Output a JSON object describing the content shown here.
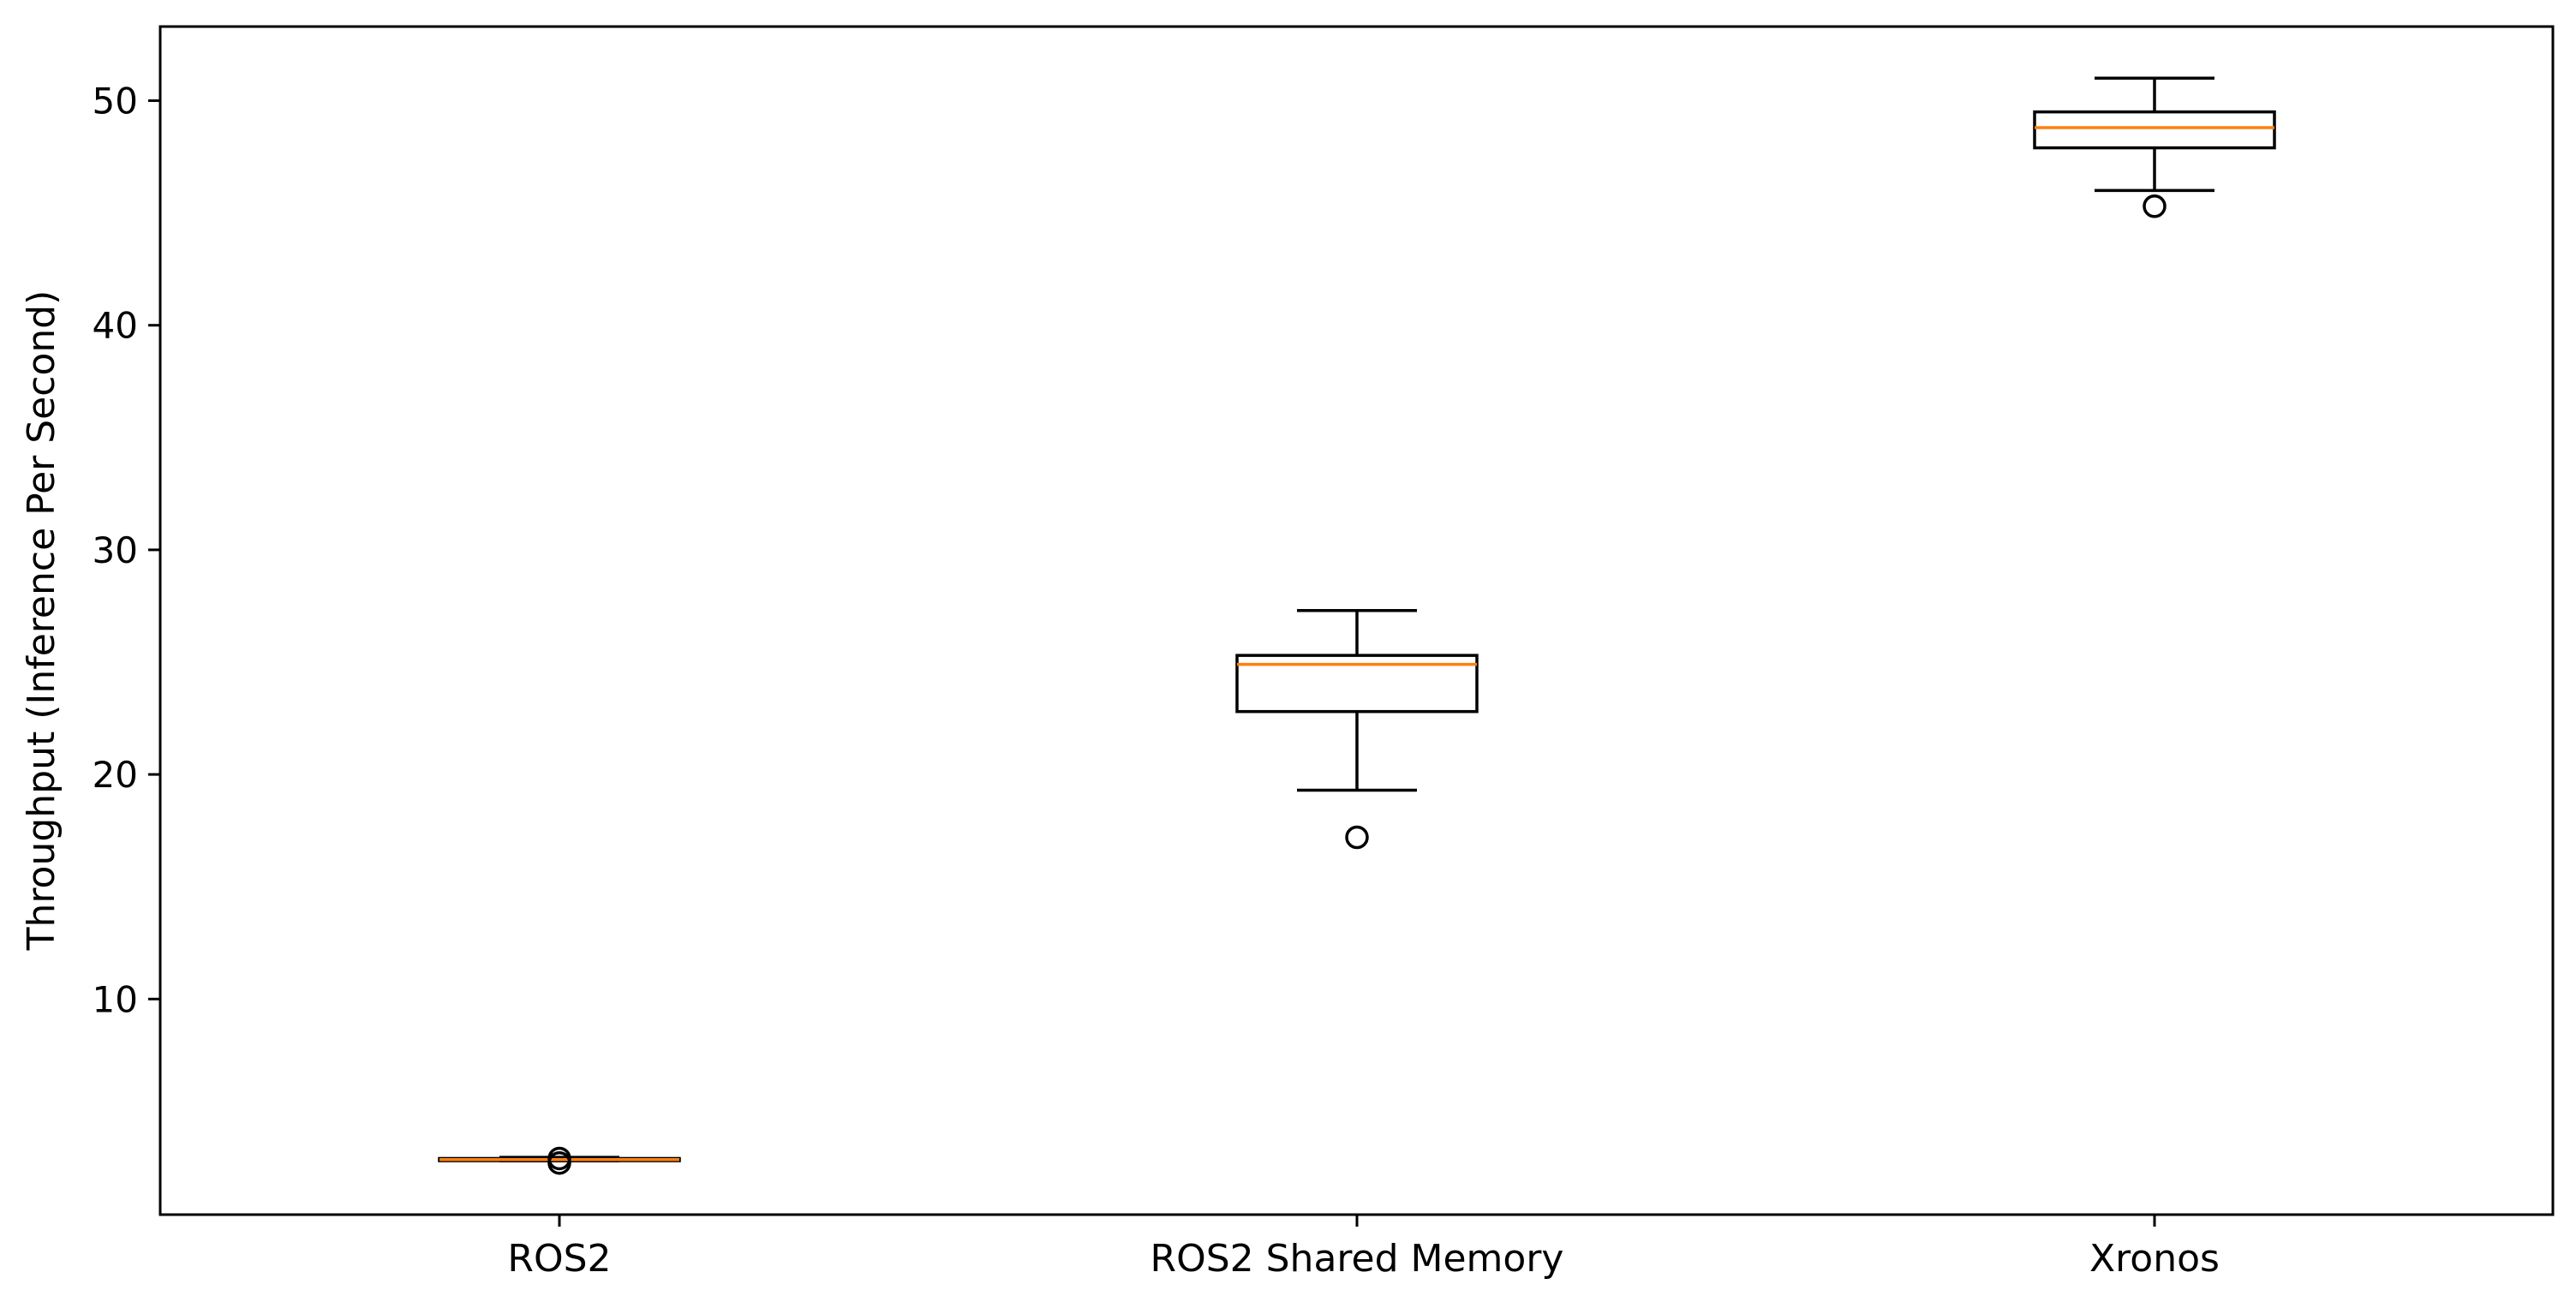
{
  "chart_data": {
    "type": "box",
    "title": "",
    "xlabel": "",
    "ylabel": "Throughput (Inference Per Second)",
    "ylim": [
      0.4,
      53.3
    ],
    "yticks": [
      10,
      20,
      30,
      40,
      50
    ],
    "grid": false,
    "legend": "none",
    "colors": {
      "box": "#000000",
      "median": "#ff7f0e",
      "background": "#ffffff"
    },
    "categories": [
      "ROS2",
      "ROS2 Shared Memory",
      "Xronos"
    ],
    "boxes": [
      {
        "category": "ROS2",
        "whisker_low": 2.8,
        "q1": 2.8,
        "median": 2.85,
        "q3": 2.9,
        "whisker_high": 2.95,
        "outliers": [
          2.7,
          2.9
        ]
      },
      {
        "category": "ROS2 Shared Memory",
        "whisker_low": 19.3,
        "q1": 22.8,
        "median": 24.9,
        "q3": 25.3,
        "whisker_high": 27.3,
        "outliers": [
          17.2
        ]
      },
      {
        "category": "Xronos",
        "whisker_low": 46.0,
        "q1": 47.9,
        "median": 48.8,
        "q3": 49.5,
        "whisker_high": 51.0,
        "outliers": [
          45.3
        ]
      }
    ]
  }
}
